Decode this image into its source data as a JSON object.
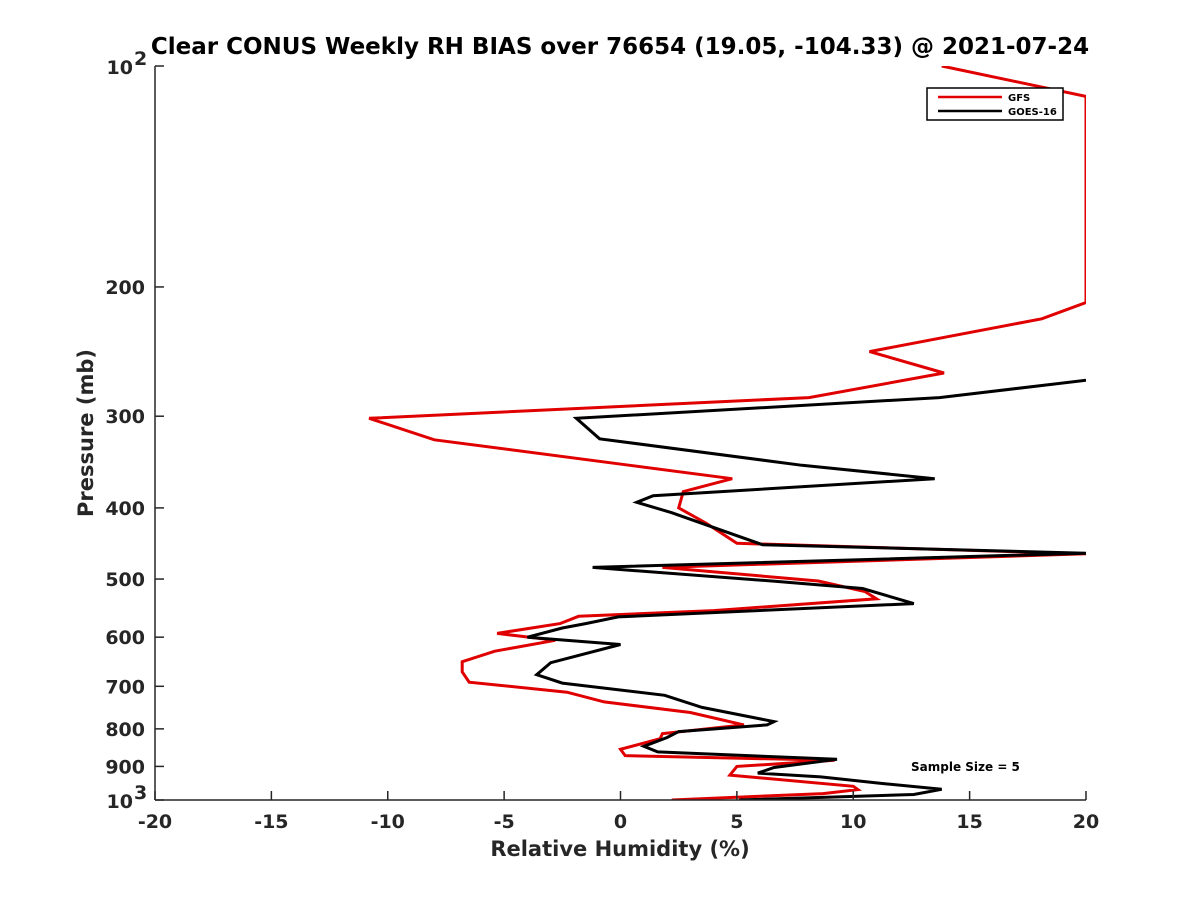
{
  "chart_data": {
    "type": "line",
    "title": "Clear CONUS Weekly RH BIAS over 76654 (19.05, -104.33) @ 2021-07-24",
    "xlabel": "Relative Humidity (%)",
    "ylabel": "Pressure (mb)",
    "xlim": [
      -20,
      20
    ],
    "ylim": [
      100,
      1000
    ],
    "yscale": "log",
    "yreversed": true,
    "grid": false,
    "legend_position": "top-right",
    "x_ticks": [
      -20,
      -15,
      -10,
      -5,
      0,
      5,
      10,
      15,
      20
    ],
    "x_tick_labels": [
      "-20",
      "-15",
      "-10",
      "-5",
      "0",
      "5",
      "10",
      "15",
      "20"
    ],
    "y_ticks": [
      200,
      300,
      400,
      500,
      600,
      700,
      800,
      900
    ],
    "y_tick_labels": [
      "200",
      "300",
      "400",
      "500",
      "600",
      "700",
      "800",
      "900"
    ],
    "y_end_labels": [
      {
        "value": 100,
        "base": "10",
        "exp": "2"
      },
      {
        "value": 1000,
        "base": "10",
        "exp": "3"
      }
    ],
    "annotation": "Sample Size = 5",
    "series": [
      {
        "name": "GFS",
        "color": "#e00000",
        "points": [
          [
            13.8,
            100
          ],
          [
            20.0,
            110
          ],
          [
            20.0,
            210
          ],
          [
            18.1,
            221
          ],
          [
            10.7,
            245
          ],
          [
            13.9,
            262
          ],
          [
            8.1,
            283
          ],
          [
            -10.8,
            302
          ],
          [
            -8.0,
            323
          ],
          [
            0.4,
            350
          ],
          [
            4.8,
            365
          ],
          [
            2.7,
            380
          ],
          [
            2.5,
            400
          ],
          [
            3.7,
            420
          ],
          [
            5.0,
            447
          ],
          [
            20.0,
            462
          ],
          [
            1.8,
            482
          ],
          [
            8.5,
            503
          ],
          [
            10.5,
            520
          ],
          [
            11.0,
            532
          ],
          [
            4.0,
            552
          ],
          [
            -1.8,
            562
          ],
          [
            -2.6,
            575
          ],
          [
            -5.3,
            593
          ],
          [
            -2.8,
            606
          ],
          [
            -5.4,
            627
          ],
          [
            -6.8,
            648
          ],
          [
            -6.8,
            669
          ],
          [
            -6.5,
            691
          ],
          [
            -2.3,
            713
          ],
          [
            -0.7,
            735
          ],
          [
            3.0,
            760
          ],
          [
            5.3,
            790
          ],
          [
            1.8,
            812
          ],
          [
            1.7,
            825
          ],
          [
            0.0,
            853
          ],
          [
            0.2,
            870
          ],
          [
            9.2,
            883
          ],
          [
            5.0,
            900
          ],
          [
            4.7,
            925
          ],
          [
            10.0,
            958
          ],
          [
            10.2,
            968
          ],
          [
            8.7,
            980
          ],
          [
            2.2,
            1000
          ]
        ]
      },
      {
        "name": "GOES-16",
        "color": "#000000",
        "points": [
          [
            20.0,
            268
          ],
          [
            13.7,
            283
          ],
          [
            -1.9,
            302
          ],
          [
            -0.9,
            322
          ],
          [
            7.8,
            350
          ],
          [
            13.5,
            365
          ],
          [
            1.4,
            385
          ],
          [
            0.7,
            393
          ],
          [
            2.2,
            406
          ],
          [
            6.1,
            449
          ],
          [
            20.0,
            461
          ],
          [
            -1.2,
            482
          ],
          [
            6.5,
            503
          ],
          [
            10.4,
            515
          ],
          [
            12.6,
            540
          ],
          [
            -0.1,
            563
          ],
          [
            -1.5,
            575
          ],
          [
            -2.5,
            583
          ],
          [
            -4.0,
            600
          ],
          [
            0.0,
            614
          ],
          [
            -3.0,
            650
          ],
          [
            -3.6,
            675
          ],
          [
            -2.5,
            693
          ],
          [
            1.9,
            720
          ],
          [
            3.5,
            748
          ],
          [
            6.6,
            782
          ],
          [
            6.3,
            790
          ],
          [
            2.5,
            807
          ],
          [
            2.0,
            822
          ],
          [
            1.0,
            845
          ],
          [
            1.6,
            860
          ],
          [
            9.3,
            880
          ],
          [
            6.6,
            903
          ],
          [
            5.9,
            919
          ],
          [
            8.6,
            930
          ],
          [
            11.3,
            950
          ],
          [
            13.8,
            967
          ],
          [
            12.6,
            983
          ],
          [
            5.1,
            1000
          ]
        ]
      }
    ]
  }
}
